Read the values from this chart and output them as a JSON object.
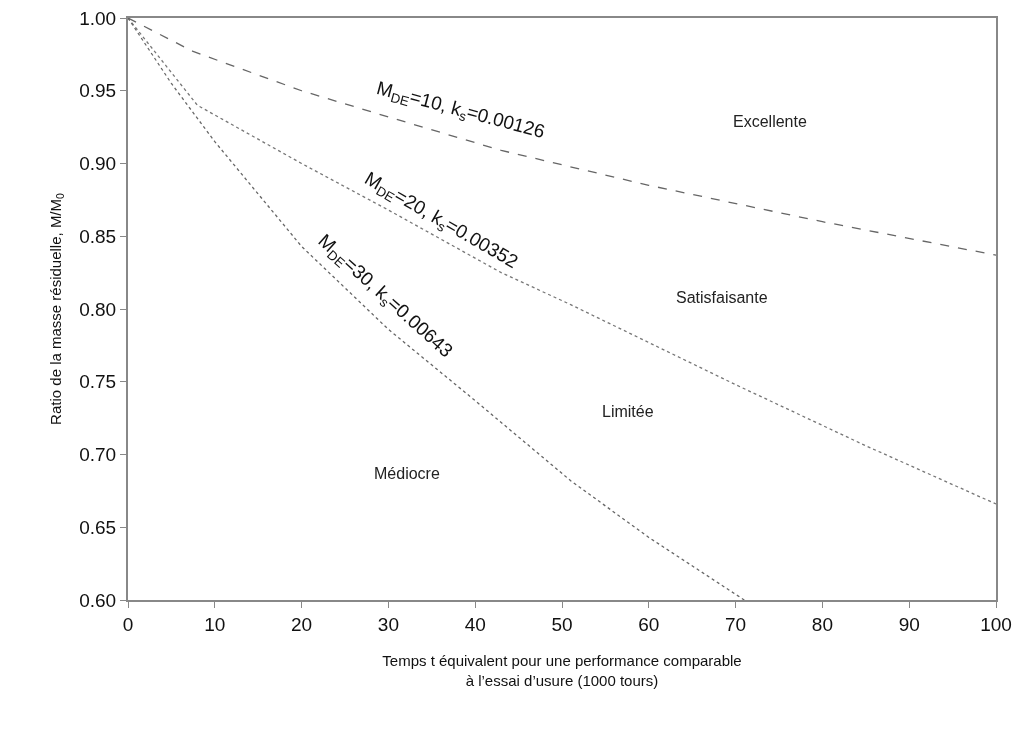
{
  "chart_data": {
    "type": "line",
    "xlabel": "Temps t équivalent pour une performance comparable\nà l’essai d’usure (1000 tours)",
    "ylabel": "Ratio de la masse résiduelle, M/M$_{0}$",
    "xlim": [
      0,
      100
    ],
    "xticks": [
      0,
      10,
      20,
      30,
      40,
      50,
      60,
      70,
      80,
      90,
      100
    ],
    "ylim": [
      0.6,
      1.0
    ],
    "yticks": [
      {
        "value": 0.6,
        "label": "0.60"
      },
      {
        "value": 0.65,
        "label": "0.65"
      },
      {
        "value": 0.7,
        "label": "0.70"
      },
      {
        "value": 0.75,
        "label": "0.75"
      },
      {
        "value": 0.8,
        "label": "0.80"
      },
      {
        "value": 0.85,
        "label": "0.85"
      },
      {
        "value": 0.9,
        "label": "0.90"
      },
      {
        "value": 0.95,
        "label": "0.95"
      },
      {
        "value": 1.0,
        "label": "1.00"
      }
    ],
    "grid": false,
    "legend": false,
    "marker": "none",
    "series": [
      {
        "name": "M$_{DE}$=10, k$_{s}$=0.00126",
        "color": "#666666",
        "line_style": "dashed",
        "x": [
          0,
          7.5,
          20,
          30,
          43,
          60,
          80,
          100
        ],
        "values": [
          1.0,
          0.977,
          0.95,
          0.932,
          0.909,
          0.885,
          0.86,
          0.837
        ]
      },
      {
        "name": "M$_{DE}$=20, k$_{s}$=0.00352",
        "color": "#777777",
        "line_style": "dotted",
        "x": [
          0,
          8,
          20,
          30,
          43,
          51,
          70,
          85,
          100
        ],
        "values": [
          1.0,
          0.94,
          0.9,
          0.868,
          0.825,
          0.803,
          0.748,
          0.706,
          0.666
        ]
      },
      {
        "name": "M$_{DE}$=30, k$_{s}$=0.00643",
        "color": "#666666",
        "line_style": "dotted",
        "x": [
          0,
          5,
          10,
          20,
          30,
          40,
          51,
          60,
          71
        ],
        "values": [
          1.0,
          0.955,
          0.915,
          0.843,
          0.786,
          0.737,
          0.682,
          0.643,
          0.6
        ]
      }
    ],
    "annotations": [
      "Excellente",
      "Satisfaisante",
      "Limitée",
      "Médiocre"
    ]
  }
}
